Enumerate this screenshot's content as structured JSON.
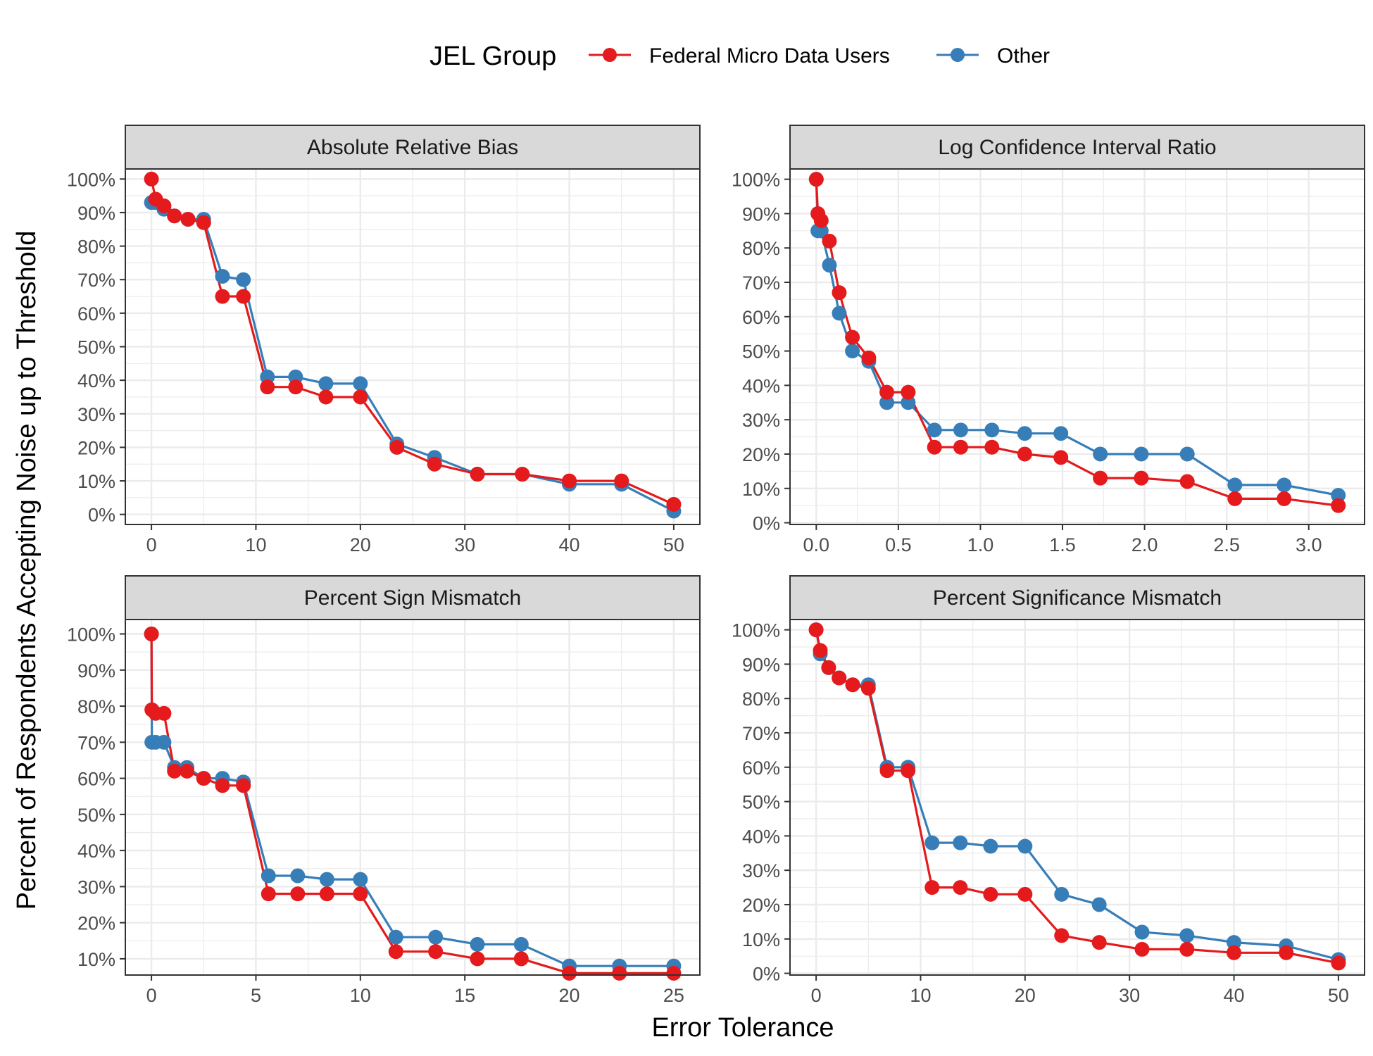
{
  "legend": {
    "title": "JEL Group",
    "entries": [
      {
        "label": "Federal Micro Data Users",
        "color": "#e41a1c"
      },
      {
        "label": "Other",
        "color": "#377eb8"
      }
    ]
  },
  "xlabel": "Error Tolerance",
  "ylabel": "Percent of Respondents Accepting Noise up to Threshold",
  "chart_data": [
    {
      "type": "line",
      "title": "Absolute Relative Bias",
      "xlim": [
        -2.5,
        52.5
      ],
      "ylim": [
        -3,
        103
      ],
      "xticks": [
        0,
        10,
        20,
        30,
        40,
        50
      ],
      "xtick_labels": [
        "0",
        "10",
        "20",
        "30",
        "40",
        "50"
      ],
      "yticks": [
        0,
        10,
        20,
        30,
        40,
        50,
        60,
        70,
        80,
        90,
        100
      ],
      "ytick_labels": [
        "0%",
        "10%",
        "20%",
        "30%",
        "40%",
        "50%",
        "60%",
        "70%",
        "80%",
        "90%",
        "100%"
      ],
      "series": [
        {
          "name": "Other",
          "color": "#377eb8",
          "x": [
            0,
            0.4,
            1.2,
            2.2,
            3.5,
            5,
            6.8,
            8.8,
            11.1,
            13.8,
            16.7,
            20,
            23.5,
            27.1,
            31.2,
            35.5,
            40,
            45,
            50
          ],
          "y": [
            93,
            93,
            91,
            89,
            88,
            88,
            71,
            70,
            41,
            41,
            39,
            39,
            21,
            17,
            12,
            12,
            9,
            9,
            1
          ]
        },
        {
          "name": "Federal Micro Data Users",
          "color": "#e41a1c",
          "x": [
            0,
            0.4,
            1.2,
            2.2,
            3.5,
            5,
            6.8,
            8.8,
            11.1,
            13.8,
            16.7,
            20,
            23.5,
            27.1,
            31.2,
            35.5,
            40,
            45,
            50
          ],
          "y": [
            100,
            94,
            92,
            89,
            88,
            87,
            65,
            65,
            38,
            38,
            35,
            35,
            20,
            15,
            12,
            12,
            10,
            10,
            3
          ]
        }
      ]
    },
    {
      "type": "line",
      "title": "Log Confidence Interval Ratio",
      "xlim": [
        -0.16,
        3.34
      ],
      "ylim": [
        -0.5,
        103
      ],
      "xticks": [
        0,
        0.5,
        1,
        1.5,
        2,
        2.5,
        3
      ],
      "xtick_labels": [
        "0.0",
        "0.5",
        "1.0",
        "1.5",
        "2.0",
        "2.5",
        "3.0"
      ],
      "yticks": [
        0,
        10,
        20,
        30,
        40,
        50,
        60,
        70,
        80,
        90,
        100
      ],
      "ytick_labels": [
        "0%",
        "10%",
        "20%",
        "30%",
        "40%",
        "50%",
        "60%",
        "70%",
        "80%",
        "90%",
        "100%"
      ],
      "series": [
        {
          "name": "Other",
          "color": "#377eb8",
          "x": [
            0,
            0.01,
            0.03,
            0.08,
            0.14,
            0.22,
            0.32,
            0.43,
            0.56,
            0.72,
            0.88,
            1.07,
            1.27,
            1.49,
            1.73,
            1.98,
            2.26,
            2.55,
            2.85,
            3.18
          ],
          "y": [
            100,
            85,
            85,
            75,
            61,
            50,
            47,
            35,
            35,
            27,
            27,
            27,
            26,
            26,
            20,
            20,
            20,
            11,
            11,
            8
          ]
        },
        {
          "name": "Federal Micro Data Users",
          "color": "#e41a1c",
          "x": [
            0,
            0.01,
            0.03,
            0.08,
            0.14,
            0.22,
            0.32,
            0.43,
            0.56,
            0.72,
            0.88,
            1.07,
            1.27,
            1.49,
            1.73,
            1.98,
            2.26,
            2.55,
            2.85,
            3.18
          ],
          "y": [
            100,
            90,
            88,
            82,
            67,
            54,
            48,
            38,
            38,
            22,
            22,
            22,
            20,
            19,
            13,
            13,
            12,
            7,
            7,
            5
          ]
        }
      ]
    },
    {
      "type": "line",
      "title": "Percent Sign Mismatch",
      "xlim": [
        -1.25,
        26.25
      ],
      "ylim": [
        5.5,
        104
      ],
      "xticks": [
        0,
        5,
        10,
        15,
        20,
        25
      ],
      "xtick_labels": [
        "0",
        "5",
        "10",
        "15",
        "20",
        "25"
      ],
      "yticks": [
        10,
        20,
        30,
        40,
        50,
        60,
        70,
        80,
        90,
        100
      ],
      "ytick_labels": [
        "10%",
        "20%",
        "30%",
        "40%",
        "50%",
        "60%",
        "70%",
        "80%",
        "90%",
        "100%"
      ],
      "series": [
        {
          "name": "Other",
          "color": "#377eb8",
          "x": [
            0,
            0.02,
            0.2,
            0.6,
            1.1,
            1.7,
            2.5,
            3.4,
            4.4,
            5.6,
            7,
            8.4,
            10,
            11.7,
            13.6,
            15.6,
            17.7,
            20,
            22.4,
            25
          ],
          "y": [
            100,
            70,
            70,
            70,
            63,
            63,
            60,
            60,
            59,
            33,
            33,
            32,
            32,
            16,
            16,
            14,
            14,
            8,
            8,
            8
          ]
        },
        {
          "name": "Federal Micro Data Users",
          "color": "#e41a1c",
          "x": [
            0,
            0.02,
            0.2,
            0.6,
            1.1,
            1.7,
            2.5,
            3.4,
            4.4,
            5.6,
            7,
            8.4,
            10,
            11.7,
            13.6,
            15.6,
            17.7,
            20,
            22.4,
            25
          ],
          "y": [
            100,
            79,
            78,
            78,
            62,
            62,
            60,
            58,
            58,
            28,
            28,
            28,
            28,
            12,
            12,
            10,
            10,
            6,
            6,
            6
          ]
        }
      ]
    },
    {
      "type": "line",
      "title": "Percent Significance Mismatch",
      "xlim": [
        -2.5,
        52.5
      ],
      "ylim": [
        -0.5,
        103
      ],
      "xticks": [
        0,
        10,
        20,
        30,
        40,
        50
      ],
      "xtick_labels": [
        "0",
        "10",
        "20",
        "30",
        "40",
        "50"
      ],
      "yticks": [
        0,
        10,
        20,
        30,
        40,
        50,
        60,
        70,
        80,
        90,
        100
      ],
      "ytick_labels": [
        "0%",
        "10%",
        "20%",
        "30%",
        "40%",
        "50%",
        "60%",
        "70%",
        "80%",
        "90%",
        "100%"
      ],
      "series": [
        {
          "name": "Other",
          "color": "#377eb8",
          "x": [
            0,
            0.4,
            1.2,
            2.2,
            3.5,
            5,
            6.8,
            8.8,
            11.1,
            13.8,
            16.7,
            20,
            23.5,
            27.1,
            31.2,
            35.5,
            40,
            45,
            50
          ],
          "y": [
            100,
            93,
            89,
            86,
            84,
            84,
            60,
            60,
            38,
            38,
            37,
            37,
            23,
            20,
            12,
            11,
            9,
            8,
            4
          ]
        },
        {
          "name": "Federal Micro Data Users",
          "color": "#e41a1c",
          "x": [
            0,
            0.4,
            1.2,
            2.2,
            3.5,
            5,
            6.8,
            8.8,
            11.1,
            13.8,
            16.7,
            20,
            23.5,
            27.1,
            31.2,
            35.5,
            40,
            45,
            50
          ],
          "y": [
            100,
            94,
            89,
            86,
            84,
            83,
            59,
            59,
            25,
            25,
            23,
            23,
            11,
            9,
            7,
            7,
            6,
            6,
            3
          ]
        }
      ]
    }
  ]
}
